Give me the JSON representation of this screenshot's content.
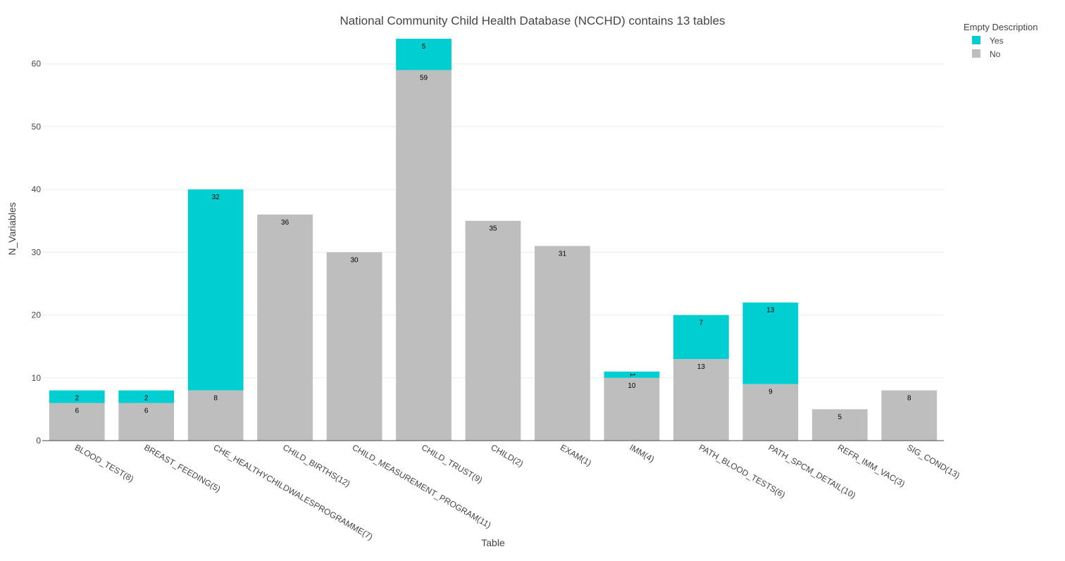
{
  "chart_data": {
    "type": "bar",
    "stacked": true,
    "title": "National Community Child Health Database (NCCHD) contains 13 tables",
    "xlabel": "Table",
    "ylabel": "N_Variables",
    "ylim": [
      0,
      64
    ],
    "yticks": [
      0,
      10,
      20,
      30,
      40,
      50,
      60
    ],
    "grid": true,
    "legend": {
      "title": "Empty Description",
      "position": "top-right"
    },
    "categories": [
      "BLOOD_TEST(8)",
      "BREAST_FEEDING(5)",
      "CHE_HEALTHYCHILDWALESPROGRAMME(7)",
      "CHILD_BIRTHS(12)",
      "CHILD_MEASUREMENT_PROGRAM(11)",
      "CHILD_TRUST(9)",
      "CHILD(2)",
      "EXAM(1)",
      "IMM(4)",
      "PATH_BLOOD_TESTS(6)",
      "PATH_SPCM_DETAIL(10)",
      "REFR_IMM_VAC(3)",
      "SIG_COND(13)"
    ],
    "series": [
      {
        "name": "No",
        "color": "#bebebe",
        "values": [
          6,
          6,
          8,
          36,
          30,
          59,
          35,
          31,
          10,
          13,
          9,
          5,
          8
        ]
      },
      {
        "name": "Yes",
        "color": "#00ced1",
        "values": [
          2,
          2,
          32,
          0,
          0,
          5,
          0,
          0,
          1,
          7,
          13,
          0,
          0
        ]
      }
    ],
    "legend_order": [
      "Yes",
      "No"
    ]
  }
}
